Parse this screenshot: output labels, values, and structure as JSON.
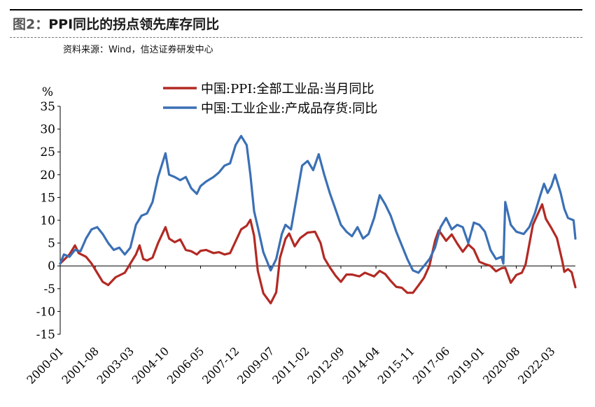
{
  "figure": {
    "label": "图2：",
    "title": "PPI同比的拐点领先库存同比",
    "source": "资料来源：Wind，信达证券研发中心"
  },
  "chart_data": {
    "type": "line",
    "ylabel": "%",
    "ylim": [
      -15,
      35
    ],
    "yticks": [
      35,
      30,
      25,
      20,
      15,
      10,
      5,
      0,
      -5,
      -10,
      -15
    ],
    "xlim": [
      "2000-01",
      "2023-04"
    ],
    "xticks": [
      "2000-01",
      "2001-08",
      "2003-03",
      "2004-10",
      "2006-05",
      "2007-12",
      "2009-07",
      "2011-02",
      "2012-09",
      "2014-04",
      "2015-11",
      "2017-06",
      "2019-01",
      "2020-08",
      "2022-03"
    ],
    "legend_position": "top-center",
    "series": [
      {
        "name": "中国:PPI:全部工业品:当月同比",
        "color": "#b22a24",
        "points": [
          [
            "2000-01",
            0.5
          ],
          [
            "2000-06",
            2.5
          ],
          [
            "2000-09",
            4.5
          ],
          [
            "2000-11",
            2.8
          ],
          [
            "2001-03",
            2.0
          ],
          [
            "2001-06",
            0.5
          ],
          [
            "2001-09",
            -1.5
          ],
          [
            "2001-12",
            -3.5
          ],
          [
            "2002-03",
            -4.2
          ],
          [
            "2002-07",
            -2.5
          ],
          [
            "2002-12",
            -1.5
          ],
          [
            "2003-03",
            0.5
          ],
          [
            "2003-06",
            2.5
          ],
          [
            "2003-08",
            4.5
          ],
          [
            "2003-10",
            1.5
          ],
          [
            "2003-12",
            1.2
          ],
          [
            "2004-03",
            1.8
          ],
          [
            "2004-06",
            5.0
          ],
          [
            "2004-10",
            8.5
          ],
          [
            "2004-12",
            6.0
          ],
          [
            "2005-03",
            5.2
          ],
          [
            "2005-06",
            5.8
          ],
          [
            "2005-09",
            3.5
          ],
          [
            "2005-12",
            3.2
          ],
          [
            "2006-03",
            2.5
          ],
          [
            "2006-05",
            3.3
          ],
          [
            "2006-08",
            3.5
          ],
          [
            "2006-12",
            2.8
          ],
          [
            "2007-03",
            3.0
          ],
          [
            "2007-06",
            2.5
          ],
          [
            "2007-09",
            2.8
          ],
          [
            "2007-12",
            5.4
          ],
          [
            "2008-03",
            8.0
          ],
          [
            "2008-06",
            8.8
          ],
          [
            "2008-08",
            10.1
          ],
          [
            "2008-10",
            6.6
          ],
          [
            "2008-12",
            -1.1
          ],
          [
            "2009-03",
            -6.0
          ],
          [
            "2009-07",
            -8.2
          ],
          [
            "2009-10",
            -5.8
          ],
          [
            "2009-12",
            1.7
          ],
          [
            "2010-03",
            5.9
          ],
          [
            "2010-05",
            7.1
          ],
          [
            "2010-08",
            4.3
          ],
          [
            "2010-11",
            6.1
          ],
          [
            "2011-03",
            7.3
          ],
          [
            "2011-07",
            7.5
          ],
          [
            "2011-10",
            5.0
          ],
          [
            "2011-12",
            1.7
          ],
          [
            "2012-03",
            -0.3
          ],
          [
            "2012-06",
            -2.1
          ],
          [
            "2012-09",
            -3.5
          ],
          [
            "2012-12",
            -1.9
          ],
          [
            "2013-03",
            -1.9
          ],
          [
            "2013-07",
            -2.3
          ],
          [
            "2013-10",
            -1.5
          ],
          [
            "2014-03",
            -2.3
          ],
          [
            "2014-06",
            -1.1
          ],
          [
            "2014-09",
            -1.8
          ],
          [
            "2014-12",
            -3.3
          ],
          [
            "2015-03",
            -4.6
          ],
          [
            "2015-06",
            -4.8
          ],
          [
            "2015-09",
            -5.9
          ],
          [
            "2015-12",
            -5.9
          ],
          [
            "2016-03",
            -4.3
          ],
          [
            "2016-06",
            -2.6
          ],
          [
            "2016-09",
            0.1
          ],
          [
            "2016-12",
            5.5
          ],
          [
            "2017-02",
            7.8
          ],
          [
            "2017-06",
            5.5
          ],
          [
            "2017-09",
            6.9
          ],
          [
            "2017-12",
            4.9
          ],
          [
            "2018-03",
            3.1
          ],
          [
            "2018-06",
            4.7
          ],
          [
            "2018-09",
            3.6
          ],
          [
            "2018-12",
            0.9
          ],
          [
            "2019-03",
            0.4
          ],
          [
            "2019-06",
            0.0
          ],
          [
            "2019-09",
            -1.2
          ],
          [
            "2019-12",
            -0.5
          ],
          [
            "2020-02",
            -0.4
          ],
          [
            "2020-05",
            -3.7
          ],
          [
            "2020-08",
            -2.0
          ],
          [
            "2020-11",
            -1.5
          ],
          [
            "2021-01",
            0.3
          ],
          [
            "2021-05",
            9.0
          ],
          [
            "2021-10",
            13.5
          ],
          [
            "2021-12",
            10.3
          ],
          [
            "2022-03",
            8.3
          ],
          [
            "2022-06",
            6.1
          ],
          [
            "2022-09",
            0.9
          ],
          [
            "2022-10",
            -1.3
          ],
          [
            "2022-12",
            -0.7
          ],
          [
            "2023-02",
            -1.4
          ],
          [
            "2023-04",
            -4.7
          ]
        ]
      },
      {
        "name": "中国:工业企业:产成品存货:同比",
        "color": "#3b70b5",
        "points": [
          [
            "2000-01",
            0.5
          ],
          [
            "2000-03",
            2.5
          ],
          [
            "2000-06",
            2.0
          ],
          [
            "2000-09",
            3.5
          ],
          [
            "2000-12",
            3.2
          ],
          [
            "2001-03",
            6.0
          ],
          [
            "2001-06",
            8.0
          ],
          [
            "2001-09",
            8.5
          ],
          [
            "2001-12",
            7.0
          ],
          [
            "2002-03",
            5.0
          ],
          [
            "2002-06",
            3.5
          ],
          [
            "2002-09",
            4.0
          ],
          [
            "2002-12",
            2.5
          ],
          [
            "2003-03",
            4.0
          ],
          [
            "2003-06",
            9.0
          ],
          [
            "2003-09",
            11.0
          ],
          [
            "2003-12",
            11.5
          ],
          [
            "2004-03",
            14.0
          ],
          [
            "2004-06",
            19.5
          ],
          [
            "2004-10",
            24.7
          ],
          [
            "2004-12",
            20.0
          ],
          [
            "2005-03",
            19.5
          ],
          [
            "2005-06",
            18.8
          ],
          [
            "2005-09",
            19.5
          ],
          [
            "2005-12",
            17.0
          ],
          [
            "2006-03",
            15.8
          ],
          [
            "2006-05",
            17.5
          ],
          [
            "2006-08",
            18.5
          ],
          [
            "2006-12",
            19.5
          ],
          [
            "2007-03",
            20.5
          ],
          [
            "2007-06",
            22.0
          ],
          [
            "2007-09",
            22.5
          ],
          [
            "2007-12",
            26.5
          ],
          [
            "2008-03",
            28.5
          ],
          [
            "2008-06",
            26.5
          ],
          [
            "2008-08",
            20.0
          ],
          [
            "2008-10",
            12.0
          ],
          [
            "2008-12",
            8.5
          ],
          [
            "2009-03",
            3.0
          ],
          [
            "2009-07",
            -1.0
          ],
          [
            "2009-10",
            1.5
          ],
          [
            "2010-01",
            7.0
          ],
          [
            "2010-03",
            9.0
          ],
          [
            "2010-06",
            8.0
          ],
          [
            "2010-09",
            15.0
          ],
          [
            "2010-12",
            22.0
          ],
          [
            "2011-03",
            23.0
          ],
          [
            "2011-06",
            21.0
          ],
          [
            "2011-09",
            24.5
          ],
          [
            "2011-12",
            20.0
          ],
          [
            "2012-03",
            16.0
          ],
          [
            "2012-06",
            12.5
          ],
          [
            "2012-09",
            9.0
          ],
          [
            "2012-12",
            7.5
          ],
          [
            "2013-03",
            6.5
          ],
          [
            "2013-06",
            8.5
          ],
          [
            "2013-09",
            6.0
          ],
          [
            "2013-12",
            7.0
          ],
          [
            "2014-03",
            10.5
          ],
          [
            "2014-06",
            15.5
          ],
          [
            "2014-09",
            13.5
          ],
          [
            "2014-12",
            11.0
          ],
          [
            "2015-03",
            7.5
          ],
          [
            "2015-06",
            4.5
          ],
          [
            "2015-09",
            1.5
          ],
          [
            "2015-12",
            -1.0
          ],
          [
            "2016-03",
            -1.5
          ],
          [
            "2016-06",
            0.0
          ],
          [
            "2016-09",
            1.5
          ],
          [
            "2016-12",
            4.0
          ],
          [
            "2017-03",
            8.5
          ],
          [
            "2017-06",
            10.5
          ],
          [
            "2017-09",
            8.0
          ],
          [
            "2017-12",
            9.0
          ],
          [
            "2018-03",
            8.5
          ],
          [
            "2018-06",
            5.0
          ],
          [
            "2018-09",
            9.5
          ],
          [
            "2018-12",
            9.0
          ],
          [
            "2019-03",
            7.5
          ],
          [
            "2019-06",
            3.5
          ],
          [
            "2019-09",
            1.5
          ],
          [
            "2019-12",
            2.0
          ],
          [
            "2020-01",
            0.5
          ],
          [
            "2020-02",
            14.0
          ],
          [
            "2020-05",
            9.0
          ],
          [
            "2020-08",
            7.5
          ],
          [
            "2020-12",
            7.0
          ],
          [
            "2021-03",
            8.5
          ],
          [
            "2021-06",
            11.5
          ],
          [
            "2021-09",
            15.5
          ],
          [
            "2021-11",
            18.0
          ],
          [
            "2022-01",
            16.0
          ],
          [
            "2022-03",
            17.5
          ],
          [
            "2022-05",
            20.0
          ],
          [
            "2022-08",
            16.0
          ],
          [
            "2022-10",
            12.5
          ],
          [
            "2022-12",
            10.5
          ],
          [
            "2023-03",
            10.0
          ],
          [
            "2023-04",
            6.0
          ]
        ]
      }
    ]
  }
}
